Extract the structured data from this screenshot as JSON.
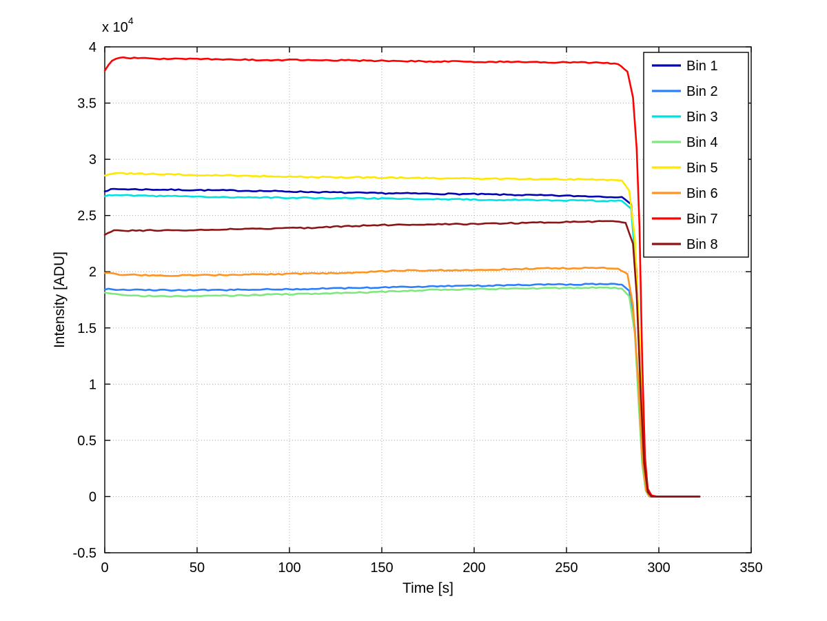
{
  "chart_data": {
    "type": "line",
    "title": "",
    "xlabel": "Time [s]",
    "ylabel": "Intensity [ADU]",
    "y_multiplier": {
      "base": "x 10",
      "exp": "4"
    },
    "xlim": [
      0,
      350
    ],
    "ylim": [
      -5000,
      40000
    ],
    "xticks": [
      0,
      50,
      100,
      150,
      200,
      250,
      300,
      350
    ],
    "xtick_labels": [
      "0",
      "50",
      "100",
      "150",
      "200",
      "250",
      "300",
      "350"
    ],
    "ytick_values": [
      -5000,
      0,
      5000,
      10000,
      15000,
      20000,
      25000,
      30000,
      35000,
      40000
    ],
    "ytick_labels": [
      "-0.5",
      "0",
      "0.5",
      "1",
      "1.5",
      "2",
      "2.5",
      "3",
      "3.5",
      "4"
    ],
    "grid": true,
    "grid_color": "#a8a8a8",
    "grid_style": "dotted",
    "axis_color": "#000000",
    "background": "#ffffff",
    "legend": {
      "position": "top-right",
      "border_color": "#000000",
      "background": "#ffffff"
    },
    "series": [
      {
        "name": "Bin 1",
        "color": "#0000b4",
        "points": [
          [
            0,
            27200
          ],
          [
            5,
            27350
          ],
          [
            30,
            27300
          ],
          [
            80,
            27200
          ],
          [
            140,
            27000
          ],
          [
            200,
            26900
          ],
          [
            250,
            26750
          ],
          [
            280,
            26650
          ],
          [
            285,
            26000
          ],
          [
            288,
            20000
          ],
          [
            290,
            10000
          ],
          [
            292,
            2000
          ],
          [
            294,
            200
          ],
          [
            296,
            0
          ],
          [
            322,
            0
          ]
        ]
      },
      {
        "name": "Bin 2",
        "color": "#2a7fff",
        "points": [
          [
            0,
            18450
          ],
          [
            10,
            18400
          ],
          [
            40,
            18350
          ],
          [
            80,
            18400
          ],
          [
            120,
            18500
          ],
          [
            160,
            18650
          ],
          [
            200,
            18750
          ],
          [
            240,
            18850
          ],
          [
            270,
            18900
          ],
          [
            280,
            18850
          ],
          [
            284,
            18300
          ],
          [
            287,
            15000
          ],
          [
            289,
            9000
          ],
          [
            291,
            3000
          ],
          [
            293,
            500
          ],
          [
            295,
            0
          ],
          [
            322,
            0
          ]
        ]
      },
      {
        "name": "Bin 3",
        "color": "#00e0e0",
        "points": [
          [
            0,
            26750
          ],
          [
            10,
            26800
          ],
          [
            60,
            26650
          ],
          [
            120,
            26550
          ],
          [
            180,
            26450
          ],
          [
            240,
            26350
          ],
          [
            280,
            26300
          ],
          [
            285,
            25600
          ],
          [
            288,
            19500
          ],
          [
            290,
            9500
          ],
          [
            292,
            1800
          ],
          [
            294,
            200
          ],
          [
            296,
            0
          ],
          [
            322,
            0
          ]
        ]
      },
      {
        "name": "Bin 4",
        "color": "#7de87d",
        "points": [
          [
            0,
            18150
          ],
          [
            12,
            17900
          ],
          [
            30,
            17800
          ],
          [
            60,
            17850
          ],
          [
            100,
            18000
          ],
          [
            140,
            18150
          ],
          [
            180,
            18400
          ],
          [
            220,
            18500
          ],
          [
            250,
            18550
          ],
          [
            272,
            18600
          ],
          [
            280,
            18500
          ],
          [
            284,
            17800
          ],
          [
            287,
            14500
          ],
          [
            289,
            8500
          ],
          [
            291,
            2800
          ],
          [
            293,
            500
          ],
          [
            295,
            0
          ],
          [
            322,
            0
          ]
        ]
      },
      {
        "name": "Bin 5",
        "color": "#ffe800",
        "points": [
          [
            0,
            28600
          ],
          [
            6,
            28750
          ],
          [
            40,
            28650
          ],
          [
            100,
            28450
          ],
          [
            160,
            28350
          ],
          [
            220,
            28250
          ],
          [
            270,
            28200
          ],
          [
            280,
            28100
          ],
          [
            284,
            27200
          ],
          [
            287,
            23000
          ],
          [
            289,
            16000
          ],
          [
            291,
            7000
          ],
          [
            293,
            1200
          ],
          [
            295,
            100
          ],
          [
            297,
            0
          ],
          [
            322,
            0
          ]
        ]
      },
      {
        "name": "Bin 6",
        "color": "#ff9320",
        "points": [
          [
            0,
            19900
          ],
          [
            8,
            19750
          ],
          [
            30,
            19650
          ],
          [
            60,
            19700
          ],
          [
            100,
            19800
          ],
          [
            130,
            19900
          ],
          [
            160,
            20100
          ],
          [
            200,
            20150
          ],
          [
            240,
            20300
          ],
          [
            268,
            20350
          ],
          [
            278,
            20300
          ],
          [
            283,
            19800
          ],
          [
            286,
            17000
          ],
          [
            289,
            10000
          ],
          [
            291,
            3500
          ],
          [
            293,
            600
          ],
          [
            295,
            0
          ],
          [
            322,
            0
          ]
        ]
      },
      {
        "name": "Bin 7",
        "color": "#ff0000",
        "points": [
          [
            0,
            37900
          ],
          [
            4,
            38800
          ],
          [
            8,
            39050
          ],
          [
            30,
            38950
          ],
          [
            80,
            38850
          ],
          [
            130,
            38800
          ],
          [
            180,
            38700
          ],
          [
            230,
            38650
          ],
          [
            268,
            38600
          ],
          [
            278,
            38450
          ],
          [
            283,
            37800
          ],
          [
            286,
            35500
          ],
          [
            288,
            31000
          ],
          [
            289.5,
            24000
          ],
          [
            291,
            12000
          ],
          [
            292.5,
            3500
          ],
          [
            294,
            700
          ],
          [
            296,
            100
          ],
          [
            299,
            0
          ],
          [
            322,
            0
          ]
        ]
      },
      {
        "name": "Bin 8",
        "color": "#8c1414",
        "points": [
          [
            0,
            23300
          ],
          [
            5,
            23700
          ],
          [
            15,
            23650
          ],
          [
            40,
            23700
          ],
          [
            80,
            23800
          ],
          [
            110,
            23900
          ],
          [
            140,
            24100
          ],
          [
            165,
            24200
          ],
          [
            200,
            24250
          ],
          [
            230,
            24350
          ],
          [
            260,
            24450
          ],
          [
            275,
            24500
          ],
          [
            282,
            24350
          ],
          [
            286,
            22500
          ],
          [
            288,
            18000
          ],
          [
            290,
            10000
          ],
          [
            292,
            3000
          ],
          [
            294,
            400
          ],
          [
            296,
            0
          ],
          [
            322,
            0
          ]
        ]
      }
    ]
  }
}
